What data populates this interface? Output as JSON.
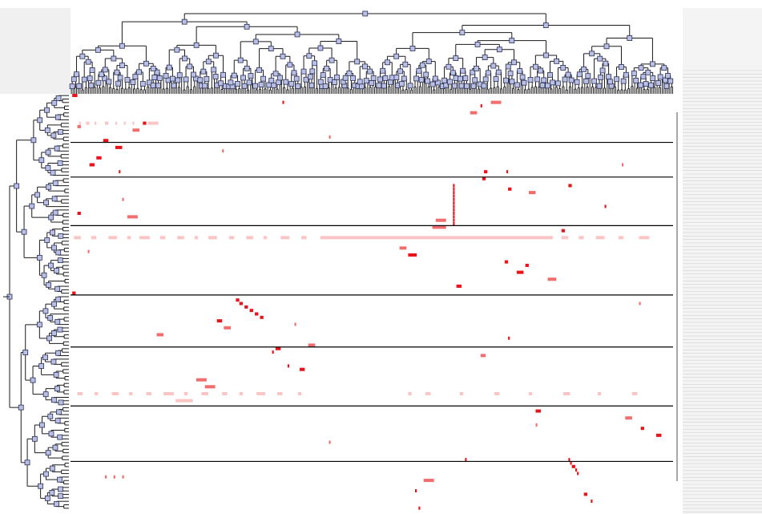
{
  "heatmap": {
    "colors": [
      "#fbc5c5",
      "#f26d6d",
      "#e8141c"
    ],
    "row_breaks": [
      14,
      24,
      38,
      58,
      73,
      90,
      106
    ],
    "cells": [
      [
        0,
        1,
        3,
        3
      ],
      [
        2,
        123,
        1,
        3
      ],
      [
        2,
        244,
        6,
        2
      ],
      [
        3,
        238,
        1,
        3
      ],
      [
        5,
        232,
        4,
        2
      ],
      [
        8,
        5,
        1,
        1
      ],
      [
        8,
        9,
        2,
        1
      ],
      [
        8,
        14,
        1,
        1
      ],
      [
        8,
        20,
        2,
        1
      ],
      [
        8,
        26,
        1,
        1
      ],
      [
        8,
        31,
        1,
        1
      ],
      [
        8,
        36,
        1,
        1
      ],
      [
        8,
        45,
        6,
        1
      ],
      [
        8,
        42,
        2,
        3
      ],
      [
        9,
        4,
        2,
        2
      ],
      [
        10,
        36,
        4,
        2
      ],
      [
        13,
        19,
        3,
        3
      ],
      [
        15,
        26,
        4,
        3
      ],
      [
        18,
        15,
        3,
        3
      ],
      [
        20,
        11,
        3,
        3
      ],
      [
        22,
        28,
        1,
        3
      ],
      [
        22,
        240,
        2,
        3
      ],
      [
        24,
        239,
        2,
        3
      ],
      [
        22,
        253,
        1,
        3
      ],
      [
        26,
        222,
        1,
        3
      ],
      [
        27,
        222,
        1,
        3
      ],
      [
        28,
        222,
        1,
        3
      ],
      [
        29,
        222,
        1,
        3
      ],
      [
        30,
        222,
        1,
        3
      ],
      [
        31,
        222,
        1,
        3
      ],
      [
        32,
        222,
        1,
        3
      ],
      [
        33,
        222,
        1,
        3
      ],
      [
        34,
        222,
        1,
        3
      ],
      [
        35,
        222,
        1,
        3
      ],
      [
        36,
        222,
        1,
        3
      ],
      [
        37,
        222,
        1,
        3
      ],
      [
        28,
        266,
        4,
        2
      ],
      [
        27,
        254,
        2,
        3
      ],
      [
        26,
        289,
        2,
        3
      ],
      [
        32,
        310,
        1,
        3
      ],
      [
        34,
        4,
        2,
        3
      ],
      [
        35,
        33,
        6,
        2
      ],
      [
        36,
        212,
        6,
        2
      ],
      [
        38,
        210,
        8,
        2
      ],
      [
        39,
        285,
        2,
        3
      ],
      [
        41,
        2,
        4,
        1
      ],
      [
        41,
        12,
        3,
        1
      ],
      [
        41,
        22,
        5,
        1
      ],
      [
        41,
        33,
        2,
        1
      ],
      [
        41,
        40,
        6,
        1
      ],
      [
        41,
        52,
        3,
        1
      ],
      [
        41,
        62,
        4,
        1
      ],
      [
        41,
        72,
        2,
        1
      ],
      [
        41,
        80,
        5,
        1
      ],
      [
        41,
        92,
        3,
        1
      ],
      [
        41,
        102,
        4,
        1
      ],
      [
        41,
        112,
        2,
        1
      ],
      [
        41,
        122,
        5,
        1
      ],
      [
        41,
        134,
        3,
        1
      ],
      [
        41,
        145,
        15,
        1
      ],
      [
        41,
        160,
        120,
        1
      ],
      [
        41,
        285,
        4,
        1
      ],
      [
        41,
        295,
        3,
        1
      ],
      [
        41,
        305,
        5,
        1
      ],
      [
        41,
        318,
        3,
        1
      ],
      [
        41,
        330,
        6,
        1
      ],
      [
        44,
        191,
        4,
        2
      ],
      [
        46,
        196,
        5,
        3
      ],
      [
        48,
        252,
        2,
        3
      ],
      [
        49,
        264,
        2,
        3
      ],
      [
        51,
        259,
        4,
        3
      ],
      [
        53,
        277,
        5,
        2
      ],
      [
        55,
        224,
        3,
        3
      ],
      [
        57,
        1,
        2,
        3
      ],
      [
        59,
        96,
        2,
        3
      ],
      [
        60,
        98,
        2,
        3
      ],
      [
        61,
        101,
        2,
        3
      ],
      [
        62,
        104,
        2,
        3
      ],
      [
        63,
        107,
        2,
        3
      ],
      [
        64,
        110,
        2,
        3
      ],
      [
        65,
        85,
        3,
        3
      ],
      [
        67,
        89,
        4,
        2
      ],
      [
        69,
        50,
        4,
        2
      ],
      [
        73,
        119,
        3,
        3
      ],
      [
        74,
        117,
        1,
        3
      ],
      [
        72,
        138,
        4,
        2
      ],
      [
        78,
        126,
        1,
        3
      ],
      [
        79,
        133,
        3,
        3
      ],
      [
        75,
        238,
        3,
        2
      ],
      [
        70,
        254,
        1,
        3
      ],
      [
        82,
        73,
        6,
        2
      ],
      [
        84,
        78,
        6,
        2
      ],
      [
        86,
        4,
        3,
        1
      ],
      [
        86,
        14,
        2,
        1
      ],
      [
        86,
        24,
        4,
        1
      ],
      [
        86,
        34,
        2,
        1
      ],
      [
        86,
        44,
        3,
        1
      ],
      [
        86,
        54,
        6,
        1
      ],
      [
        86,
        66,
        2,
        1
      ],
      [
        86,
        76,
        4,
        1
      ],
      [
        86,
        88,
        3,
        1
      ],
      [
        86,
        98,
        2,
        1
      ],
      [
        86,
        108,
        5,
        1
      ],
      [
        86,
        120,
        3,
        1
      ],
      [
        86,
        132,
        2,
        1
      ],
      [
        86,
        196,
        2,
        1
      ],
      [
        86,
        206,
        3,
        1
      ],
      [
        86,
        226,
        2,
        1
      ],
      [
        86,
        246,
        3,
        1
      ],
      [
        86,
        266,
        2,
        1
      ],
      [
        86,
        286,
        4,
        1
      ],
      [
        86,
        306,
        2,
        1
      ],
      [
        86,
        326,
        3,
        1
      ],
      [
        88,
        61,
        10,
        1
      ],
      [
        91,
        270,
        3,
        3
      ],
      [
        93,
        322,
        4,
        2
      ],
      [
        96,
        331,
        2,
        3
      ],
      [
        98,
        340,
        3,
        3
      ],
      [
        105,
        229,
        1,
        3
      ],
      [
        105,
        289,
        1,
        3
      ],
      [
        106,
        290,
        1,
        3
      ],
      [
        107,
        291,
        2,
        3
      ],
      [
        108,
        293,
        1,
        3
      ],
      [
        109,
        294,
        1,
        3
      ],
      [
        111,
        205,
        6,
        2
      ],
      [
        114,
        200,
        1,
        3
      ],
      [
        115,
        298,
        2,
        3
      ],
      [
        117,
        302,
        1,
        3
      ],
      [
        119,
        202,
        1,
        3
      ],
      [
        12,
        150,
        1,
        2
      ],
      [
        16,
        88,
        1,
        2
      ],
      [
        30,
        30,
        1,
        2
      ],
      [
        45,
        10,
        1,
        2
      ],
      [
        66,
        130,
        1,
        2
      ],
      [
        100,
        150,
        1,
        2
      ],
      [
        110,
        20,
        1,
        2
      ],
      [
        110,
        25,
        1,
        2
      ],
      [
        110,
        30,
        1,
        2
      ],
      [
        95,
        270,
        1,
        2
      ],
      [
        60,
        330,
        1,
        2
      ],
      [
        20,
        320,
        1,
        2
      ]
    ]
  }
}
